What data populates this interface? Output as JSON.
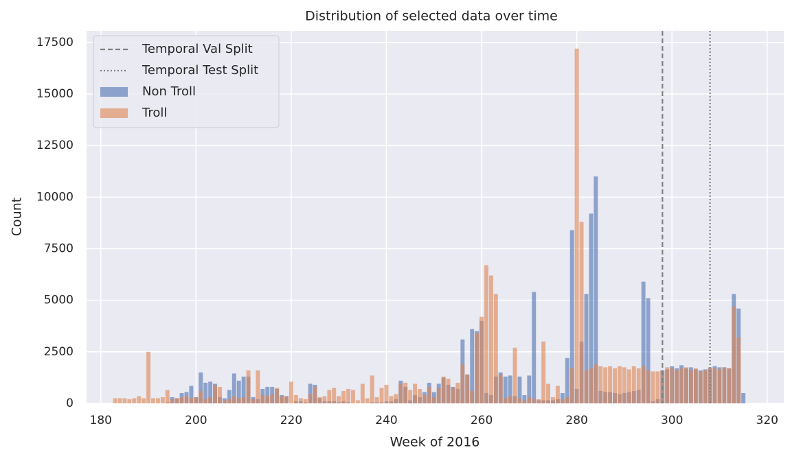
{
  "chart_data": {
    "type": "histogram",
    "title": "Distribution of selected data over time",
    "xlabel": "Week of 2016",
    "ylabel": "Count",
    "bins": [
      182.5,
      183.5,
      184.5,
      185.5,
      186.5,
      187.5,
      188.5,
      189.5,
      190.5,
      191.5,
      192.5,
      193.5,
      194.5,
      195.5,
      196.5,
      197.5,
      198.5,
      199.5,
      200.5,
      201.5,
      202.5,
      203.5,
      204.5,
      205.5,
      206.5,
      207.5,
      208.5,
      209.5,
      210.5,
      211.5,
      212.5,
      213.5,
      214.5,
      215.5,
      216.5,
      217.5,
      218.5,
      219.5,
      220.5,
      221.5,
      222.5,
      223.5,
      224.5,
      225.5,
      226.5,
      227.5,
      228.5,
      229.5,
      230.5,
      231.5,
      232.5,
      233.5,
      234.5,
      235.5,
      236.5,
      237.5,
      238.5,
      239.5,
      240.5,
      241.5,
      242.5,
      243.5,
      244.5,
      245.5,
      246.5,
      247.5,
      248.5,
      249.5,
      250.5,
      251.5,
      252.5,
      253.5,
      254.5,
      255.5,
      256.5,
      257.5,
      258.5,
      259.5,
      260.5,
      261.5,
      262.5,
      263.5,
      264.5,
      265.5,
      266.5,
      267.5,
      268.5,
      269.5,
      270.5,
      271.5,
      272.5,
      273.5,
      274.5,
      275.5,
      276.5,
      277.5,
      278.5,
      279.5,
      280.5,
      281.5,
      282.5,
      283.5,
      284.5,
      285.5,
      286.5,
      287.5,
      288.5,
      289.5,
      290.5,
      291.5,
      292.5,
      293.5,
      294.5,
      295.5,
      296.5,
      297.5,
      298.5,
      299.5,
      300.5,
      301.5,
      302.5,
      303.5,
      304.5,
      305.5,
      306.5,
      307.5,
      308.5,
      309.5,
      310.5,
      311.5,
      312.5,
      313.5,
      314.5,
      315.5
    ],
    "series": [
      {
        "name": "Non Troll",
        "color": "#4c72b0",
        "values": [
          0,
          0,
          0,
          0,
          0,
          0,
          0,
          0,
          0,
          0,
          0,
          50,
          300,
          250,
          500,
          550,
          850,
          300,
          1500,
          1000,
          1050,
          950,
          300,
          250,
          650,
          1450,
          1100,
          1300,
          1300,
          300,
          200,
          700,
          800,
          800,
          700,
          400,
          350,
          0,
          100,
          100,
          50,
          950,
          900,
          250,
          100,
          100,
          100,
          50,
          100,
          50,
          0,
          0,
          0,
          0,
          50,
          50,
          50,
          100,
          100,
          200,
          1100,
          800,
          150,
          400,
          300,
          550,
          1000,
          550,
          950,
          1250,
          900,
          800,
          700,
          3100,
          1400,
          3600,
          3500,
          4000,
          500,
          400,
          1300,
          1500,
          1300,
          1350,
          350,
          1300,
          400,
          1350,
          5400,
          150,
          150,
          150,
          150,
          200,
          500,
          2200,
          8400,
          700,
          3000,
          5300,
          9200,
          11000,
          600,
          550,
          550,
          500,
          450,
          500,
          550,
          600,
          650,
          5900,
          5100,
          100,
          200,
          1600,
          1650,
          1800,
          1700,
          1850,
          1700,
          1750,
          1650,
          1600,
          1650,
          1700,
          1800,
          1750,
          1750,
          1700,
          5300,
          4600,
          500
        ]
      },
      {
        "name": "Troll",
        "color": "#dd8452",
        "values": [
          250,
          250,
          250,
          200,
          250,
          350,
          250,
          2500,
          250,
          250,
          300,
          650,
          200,
          250,
          300,
          350,
          250,
          300,
          600,
          200,
          300,
          900,
          800,
          150,
          200,
          350,
          250,
          300,
          1600,
          200,
          1600,
          400,
          350,
          450,
          750,
          350,
          350,
          1050,
          400,
          250,
          200,
          450,
          800,
          300,
          350,
          650,
          750,
          350,
          600,
          700,
          650,
          150,
          950,
          250,
          1350,
          300,
          750,
          900,
          350,
          450,
          950,
          1000,
          650,
          950,
          700,
          400,
          800,
          300,
          750,
          1300,
          1200,
          750,
          1000,
          1900,
          1400,
          600,
          3400,
          4200,
          6700,
          6200,
          5300,
          1400,
          250,
          350,
          2700,
          250,
          150,
          300,
          200,
          200,
          3000,
          950,
          300,
          850,
          200,
          300,
          1700,
          17200,
          8800,
          1600,
          1700,
          1900,
          1800,
          1750,
          1800,
          1700,
          1800,
          1750,
          1650,
          1800,
          1700,
          1800,
          1600,
          1550,
          1550,
          1600,
          1750,
          1700,
          1600,
          1700,
          1750,
          1600,
          1700,
          1550,
          1600,
          1750,
          1700,
          1650,
          1750,
          1700,
          4700,
          3200,
          0
        ]
      }
    ],
    "vlines": [
      {
        "x": 298,
        "label": "Temporal Val Split",
        "style": "dashed",
        "color": "#808080"
      },
      {
        "x": 308,
        "label": "Temporal Test Split",
        "style": "dotted",
        "color": "#808080"
      }
    ],
    "xlim": [
      177,
      323.5
    ],
    "ylim": [
      0,
      18060
    ],
    "xticks": [
      180,
      200,
      220,
      240,
      260,
      280,
      300,
      320
    ],
    "yticks": [
      0,
      2500,
      5000,
      7500,
      10000,
      12500,
      15000,
      17500
    ],
    "grid": true,
    "legend": "upper-left"
  }
}
